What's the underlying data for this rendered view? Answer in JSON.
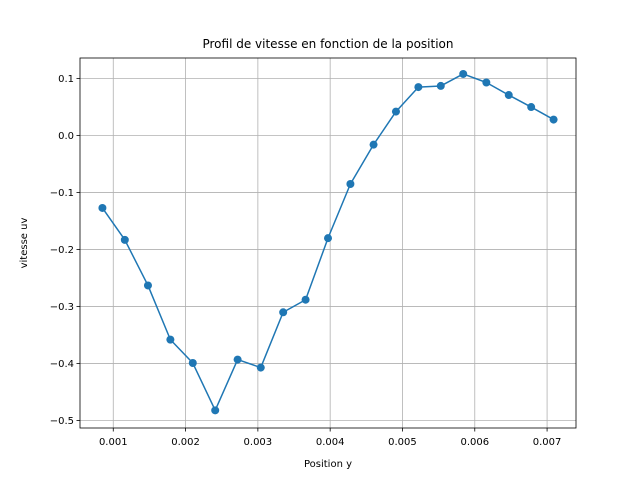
{
  "chart_data": {
    "type": "line",
    "title": "Profil de vitesse en fonction de la position",
    "xlabel": "Position y",
    "ylabel": "vitesse uv",
    "xlim": [
      0.00054,
      0.0074
    ],
    "ylim": [
      -0.513,
      0.136
    ],
    "grid": true,
    "marker": "circle",
    "line_color": "#1f77b4",
    "x_ticks": [
      {
        "value": 0.001,
        "label": "0.001"
      },
      {
        "value": 0.002,
        "label": "0.002"
      },
      {
        "value": 0.003,
        "label": "0.003"
      },
      {
        "value": 0.004,
        "label": "0.004"
      },
      {
        "value": 0.005,
        "label": "0.005"
      },
      {
        "value": 0.006,
        "label": "0.006"
      },
      {
        "value": 0.007,
        "label": "0.007"
      }
    ],
    "y_ticks": [
      {
        "value": 0.1,
        "label": "0.1"
      },
      {
        "value": 0.0,
        "label": "0.0"
      },
      {
        "value": -0.1,
        "label": "−0.1"
      },
      {
        "value": -0.2,
        "label": "−0.2"
      },
      {
        "value": -0.3,
        "label": "−0.3"
      },
      {
        "value": -0.4,
        "label": "−0.4"
      },
      {
        "value": -0.5,
        "label": "−0.5"
      }
    ],
    "series": [
      {
        "x": [
          0.00085,
          0.00116,
          0.00148,
          0.00179,
          0.0021,
          0.00241,
          0.00272,
          0.00304,
          0.00335,
          0.00366,
          0.00397,
          0.00428,
          0.0046,
          0.00491,
          0.00522,
          0.00553,
          0.00584,
          0.00616,
          0.00647,
          0.00678,
          0.00709
        ],
        "y": [
          -0.127,
          -0.183,
          -0.263,
          -0.358,
          -0.399,
          -0.482,
          -0.393,
          -0.407,
          -0.31,
          -0.288,
          -0.18,
          -0.085,
          -0.016,
          0.042,
          0.085,
          0.087,
          0.108,
          0.093,
          0.071,
          0.05,
          0.028
        ]
      }
    ]
  }
}
